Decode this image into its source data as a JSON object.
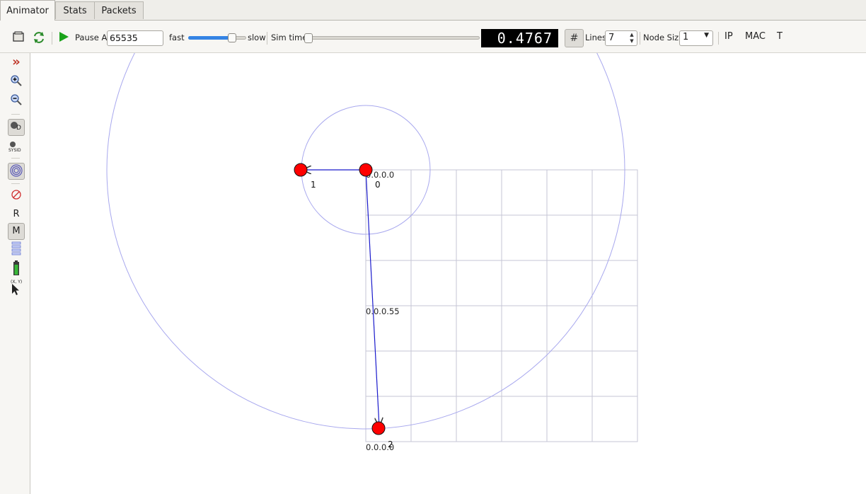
{
  "tabs": [
    {
      "label": "Animator",
      "active": true
    },
    {
      "label": "Stats",
      "active": false
    },
    {
      "label": "Packets",
      "active": false
    }
  ],
  "toolbar": {
    "open_icon": "folder-icon",
    "reload_icon": "reload-icon",
    "play_icon": "play-icon",
    "pause_at_label": "Pause At",
    "pause_at_value": "65535",
    "fast_label": "fast",
    "slow_label": "slow",
    "speed_level": 0.8,
    "sim_time_label": "Sim time",
    "sim_time_progress": 0.0,
    "sim_time_display": "0.4767",
    "grid_button_icon": "#",
    "lines_label": "Lines",
    "lines_value": "7",
    "node_size_label": "Node Size",
    "node_size_value": "1",
    "ip_label": "IP",
    "mac_label": "MAC",
    "t_label": "T"
  },
  "sidebar": {
    "items": [
      {
        "name": "expand-chevron-icon",
        "text": "»",
        "color": "#c0392b"
      },
      {
        "name": "zoom-in-icon"
      },
      {
        "name": "zoom-out-icon"
      },
      {
        "name": "node-id-toggle-icon",
        "text": "D",
        "toggled": true
      },
      {
        "name": "node-sysid-icon",
        "text": "SYSID"
      },
      {
        "name": "wireless-circles-icon",
        "toggled": true
      },
      {
        "name": "no-packets-icon"
      },
      {
        "name": "r-toggle",
        "text": "R"
      },
      {
        "name": "m-toggle",
        "text": "M",
        "toggled": true
      },
      {
        "name": "list-icon"
      },
      {
        "name": "battery-icon"
      },
      {
        "name": "mouse-position-icon",
        "text": "(X, Y)"
      }
    ]
  },
  "canvas": {
    "nodes": [
      {
        "id": "0",
        "label": "0"
      },
      {
        "id": "1",
        "label": "1"
      },
      {
        "id": "2",
        "label": "2"
      }
    ],
    "grid_labels": {
      "top": "0.0.0.0",
      "mid": "0.0.0.55",
      "bottom": "0.0.0.0"
    },
    "colors": {
      "node_fill": "#ff0000",
      "link": "#1a1acc",
      "circle": "#9a9af0",
      "grid": "#c8c8d8"
    }
  }
}
